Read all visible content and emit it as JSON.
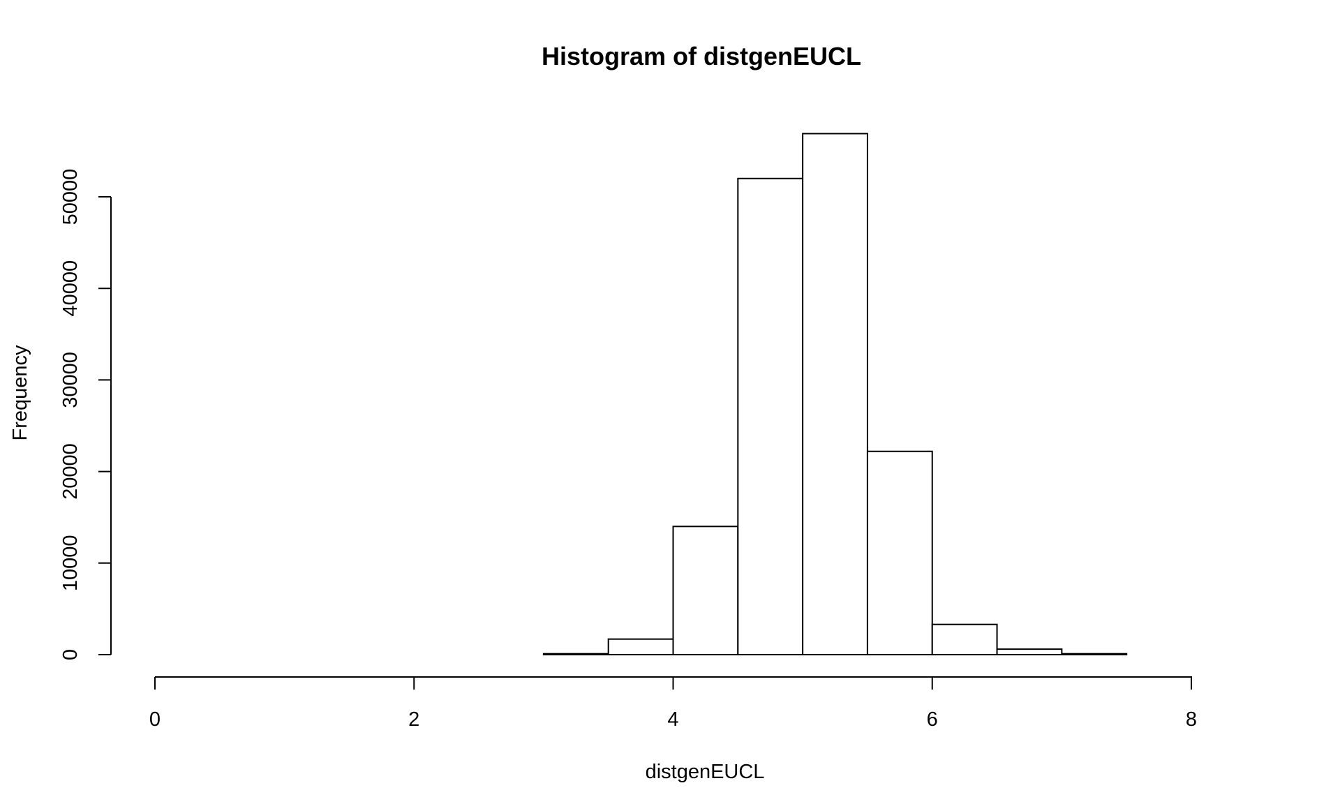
{
  "chart_data": {
    "type": "bar",
    "title": "Histogram of distgenEUCL",
    "xlabel": "distgenEUCL",
    "ylabel": "Frequency",
    "bin_edges": [
      0,
      0.5,
      1,
      1.5,
      2,
      2.5,
      3,
      3.5,
      4,
      4.5,
      5,
      5.5,
      6,
      6.5,
      7,
      7.5,
      8,
      8.5
    ],
    "values": [
      0,
      0,
      0,
      0,
      0,
      0,
      100,
      1700,
      14000,
      52000,
      56900,
      22200,
      3300,
      600,
      100,
      0,
      0
    ],
    "x_ticks": [
      0,
      2,
      4,
      6,
      8
    ],
    "x_tick_labels": [
      "0",
      "2",
      "4",
      "6",
      "8"
    ],
    "y_ticks": [
      0,
      10000,
      20000,
      30000,
      40000,
      50000
    ],
    "y_tick_labels": [
      "0",
      "10000",
      "20000",
      "30000",
      "40000",
      "50000"
    ],
    "xlim": [
      0,
      8.5
    ],
    "ylim": [
      0,
      56900
    ],
    "grid": false,
    "legend": "none"
  }
}
